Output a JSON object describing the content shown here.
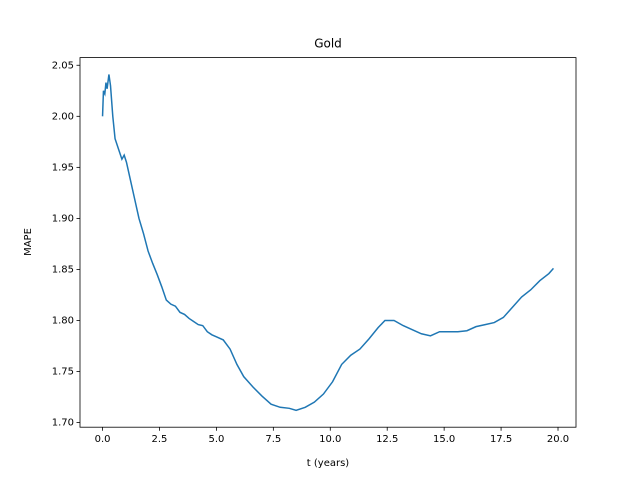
{
  "chart_data": {
    "type": "line",
    "title": "Gold",
    "xlabel": "t (years)",
    "ylabel": "MAPE",
    "x": [
      0,
      0.04,
      0.1,
      0.15,
      0.2,
      0.28,
      0.35,
      0.45,
      0.55,
      0.7,
      0.85,
      0.95,
      1.05,
      1.2,
      1.4,
      1.6,
      1.8,
      2.0,
      2.2,
      2.4,
      2.6,
      2.8,
      3.0,
      3.2,
      3.4,
      3.6,
      3.8,
      4.0,
      4.2,
      4.4,
      4.6,
      4.8,
      5.0,
      5.3,
      5.6,
      5.9,
      6.2,
      6.6,
      7.0,
      7.4,
      7.8,
      8.2,
      8.5,
      8.9,
      9.3,
      9.7,
      10.1,
      10.5,
      10.9,
      11.3,
      11.7,
      12.1,
      12.4,
      12.8,
      13.2,
      13.6,
      14.0,
      14.4,
      14.8,
      15.2,
      15.6,
      16.0,
      16.4,
      16.8,
      17.2,
      17.6,
      18.0,
      18.4,
      18.8,
      19.2,
      19.6,
      19.8
    ],
    "series": [
      {
        "name": "Gold",
        "color": "#1f77b4",
        "values": [
          2.0,
          2.025,
          2.022,
          2.033,
          2.027,
          2.041,
          2.03,
          2.0,
          1.978,
          1.968,
          1.958,
          1.962,
          1.955,
          1.94,
          1.92,
          1.9,
          1.885,
          1.868,
          1.856,
          1.845,
          1.833,
          1.82,
          1.816,
          1.814,
          1.808,
          1.806,
          1.802,
          1.799,
          1.796,
          1.795,
          1.789,
          1.786,
          1.784,
          1.781,
          1.772,
          1.757,
          1.745,
          1.735,
          1.726,
          1.718,
          1.715,
          1.714,
          1.712,
          1.715,
          1.72,
          1.728,
          1.74,
          1.757,
          1.766,
          1.772,
          1.782,
          1.793,
          1.8,
          1.8,
          1.795,
          1.791,
          1.787,
          1.785,
          1.789,
          1.789,
          1.789,
          1.79,
          1.794,
          1.796,
          1.798,
          1.803,
          1.813,
          1.823,
          1.83,
          1.839,
          1.846,
          1.851
        ]
      }
    ],
    "xlim": [
      -0.99,
      20.79
    ],
    "xticks": [
      {
        "value": 0,
        "label": "0.0"
      },
      2.5,
      {
        "value": 5,
        "label": "5.0"
      },
      7.5,
      {
        "value": 10,
        "label": "10.0"
      },
      12.5,
      {
        "value": 15,
        "label": "15.0"
      },
      17.5,
      {
        "value": 20,
        "label": "20.0"
      }
    ],
    "ylim": [
      1.6955,
      2.0575
    ],
    "yticks": [
      {
        "value": 1.7,
        "label": "1.70"
      },
      1.75,
      {
        "value": 1.8,
        "label": "1.80"
      },
      1.85,
      {
        "value": 1.9,
        "label": "1.90"
      },
      1.95,
      {
        "value": 2.0,
        "label": "2.00"
      },
      2.05
    ],
    "grid": false
  }
}
